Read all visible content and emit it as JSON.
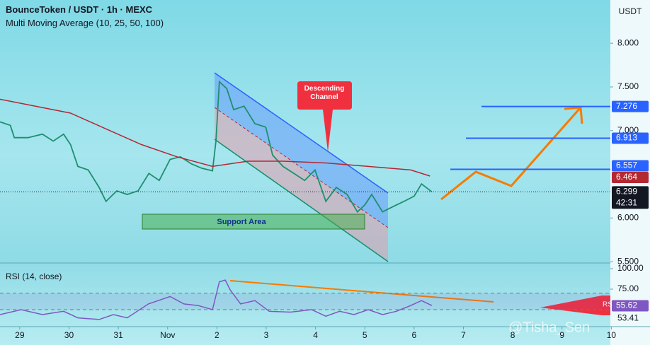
{
  "chart_data": [
    {
      "type": "line",
      "title": "BounceToken / USDT · 1h · MEXC",
      "subtitle": "Multi Moving Average (10, 25, 50, 100)",
      "currency": "USDT",
      "xlim": [
        -0.4,
        11.98
      ],
      "ylim": [
        5.485,
        8.495
      ],
      "yticks": [
        {
          "value": 8,
          "label": "8.000"
        },
        {
          "value": 7.5,
          "label": "7.500"
        },
        {
          "value": 7,
          "label": "7.000"
        },
        {
          "value": 6,
          "label": "6.000"
        },
        {
          "value": 5.5,
          "label": "5.500"
        }
      ],
      "series": [
        {
          "color": "#1e8f6e",
          "x": [
            -0.4,
            -0.19,
            -0.11,
            0.17,
            0.46,
            0.68,
            0.89,
            1.03,
            1.18,
            1.39,
            1.61,
            1.75,
            1.97,
            2.18,
            2.4,
            2.62,
            2.83,
            3.05,
            3.26,
            3.48,
            3.69,
            3.91,
            3.98,
            4.05,
            4.2,
            4.34,
            4.55,
            4.77,
            4.99,
            5.13,
            5.34,
            5.56,
            5.78,
            5.99,
            6.21,
            6.42,
            6.64,
            6.85,
            7.0,
            7.14,
            7.36,
            7.57,
            7.79,
            8.0,
            8.15,
            8.36
          ],
          "values": [
            7.1,
            7.06,
            6.92,
            6.92,
            6.96,
            6.88,
            6.96,
            6.84,
            6.59,
            6.55,
            6.35,
            6.19,
            6.31,
            6.27,
            6.31,
            6.51,
            6.43,
            6.67,
            6.7,
            6.62,
            6.57,
            6.54,
            6.88,
            7.56,
            7.48,
            7.24,
            7.28,
            7.08,
            7.04,
            6.72,
            6.59,
            6.51,
            6.43,
            6.55,
            6.19,
            6.35,
            6.27,
            6.07,
            6.15,
            6.27,
            6.07,
            6.13,
            6.19,
            6.25,
            6.39,
            6.3
          ]
        },
        {
          "color": "#b22833",
          "x": [
            -0.4,
            1.03,
            1.75,
            2.47,
            3.19,
            3.91,
            4.63,
            5.34,
            6.21,
            7.07,
            7.93,
            8.32
          ],
          "values": [
            7.36,
            7.2,
            7.02,
            6.84,
            6.7,
            6.59,
            6.65,
            6.65,
            6.63,
            6.59,
            6.55,
            6.48
          ]
        }
      ],
      "levels": [
        7.276,
        6.913,
        6.557
      ],
      "level_color": "#2962ff",
      "ma_last": 6.464,
      "last_price": 6.299,
      "countdown": "42:31",
      "annotations": [
        "Descending Channel",
        "Support Area"
      ]
    },
    {
      "type": "line",
      "title": "RSI (14, close)",
      "xlim": [
        -0.4,
        11.98
      ],
      "ylim": [
        29.3,
        106.9
      ],
      "yticks": [
        {
          "value": 100,
          "label": "100.00"
        },
        {
          "value": 75,
          "label": "75.00"
        }
      ],
      "bands": [
        70,
        50
      ],
      "series": [
        {
          "color": "#7e57c2",
          "x": [
            -0.4,
            0.03,
            0.46,
            0.89,
            1.18,
            1.61,
            1.9,
            2.18,
            2.61,
            3.05,
            3.33,
            3.62,
            3.91,
            4.05,
            4.17,
            4.27,
            4.48,
            4.77,
            5.06,
            5.49,
            5.92,
            6.21,
            6.49,
            6.78,
            7.07,
            7.36,
            7.64,
            7.93,
            8.15,
            8.36
          ],
          "values": [
            44,
            50,
            44,
            48,
            40,
            38,
            44,
            40,
            57,
            66,
            57,
            55,
            50,
            84,
            86,
            74,
            57,
            61,
            48,
            47,
            50,
            42,
            48,
            44,
            50,
            44,
            48,
            55,
            61,
            55
          ]
        }
      ],
      "last_value": 55.62,
      "ma_value": 53.41,
      "callout": "RSI",
      "xticks": [
        {
          "value": 0,
          "label": "29"
        },
        {
          "value": 1,
          "label": "30"
        },
        {
          "value": 2,
          "label": "31"
        },
        {
          "value": 3,
          "label": "Nov"
        },
        {
          "value": 4,
          "label": "2"
        },
        {
          "value": 5,
          "label": "3"
        },
        {
          "value": 6,
          "label": "4"
        },
        {
          "value": 7,
          "label": "5"
        },
        {
          "value": 8,
          "label": "6"
        },
        {
          "value": 9,
          "label": "7"
        },
        {
          "value": 10,
          "label": "8"
        },
        {
          "value": 11,
          "label": "9"
        },
        {
          "value": 12,
          "label": "10"
        }
      ]
    }
  ],
  "watermark": "@Tisha_Sen"
}
